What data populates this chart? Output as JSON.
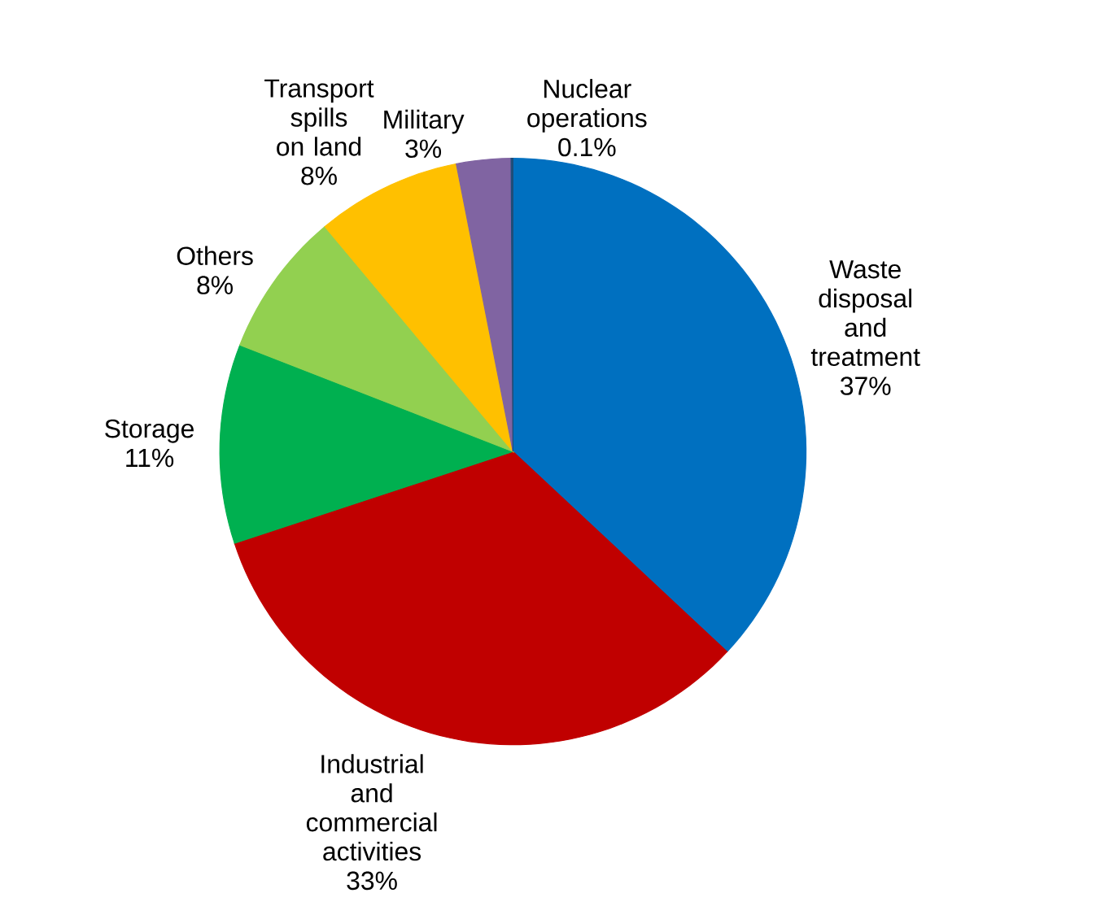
{
  "chart_data": {
    "type": "pie",
    "categories": [
      "Waste disposal and treatment",
      "Industrial and commercial activities",
      "Storage",
      "Others",
      "Transport spills on land",
      "Military",
      "Nuclear operations"
    ],
    "values": [
      37,
      33,
      11,
      8,
      8,
      3,
      0.1
    ],
    "value_labels": [
      "37%",
      "33%",
      "11%",
      "8%",
      "8%",
      "3%",
      "0.1%"
    ],
    "colors": [
      "#0070c0",
      "#c00000",
      "#00b050",
      "#92d050",
      "#ffc000",
      "#8064a2",
      "#1f4e79"
    ]
  }
}
